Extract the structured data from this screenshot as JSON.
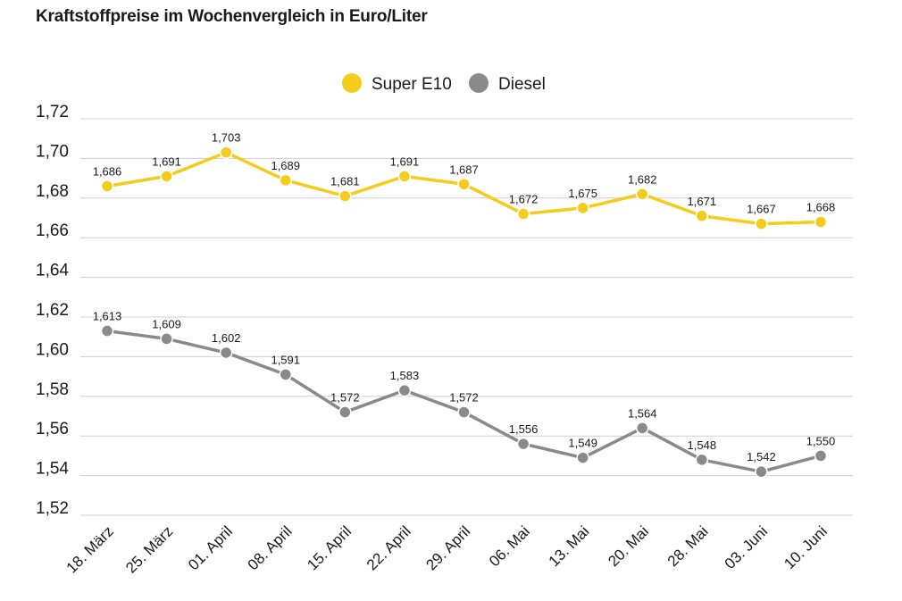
{
  "chart_data": {
    "type": "line",
    "title": "Kraftstoffpreise im Wochenvergleich in Euro/Liter",
    "categories": [
      "18. März",
      "25. März",
      "01. April",
      "08. April",
      "15. April",
      "22. April",
      "29. April",
      "06. Mai",
      "13. Mai",
      "20. Mai",
      "28. Mai",
      "03. Juni",
      "10. Juni"
    ],
    "series": [
      {
        "name": "Super E10",
        "color": "#f5cb1c",
        "values": [
          1.686,
          1.691,
          1.703,
          1.689,
          1.681,
          1.691,
          1.687,
          1.672,
          1.675,
          1.682,
          1.671,
          1.667,
          1.668
        ],
        "labels": [
          "1,686",
          "1,691",
          "1,703",
          "1,689",
          "1,681",
          "1,691",
          "1,687",
          "1,672",
          "1,675",
          "1,682",
          "1,671",
          "1,667",
          "1,668"
        ]
      },
      {
        "name": "Diesel",
        "color": "#8a8a8a",
        "values": [
          1.613,
          1.609,
          1.602,
          1.591,
          1.572,
          1.583,
          1.572,
          1.556,
          1.549,
          1.564,
          1.548,
          1.542,
          1.55
        ],
        "labels": [
          "1,613",
          "1,609",
          "1,602",
          "1,591",
          "1,572",
          "1,583",
          "1,572",
          "1,556",
          "1,549",
          "1,564",
          "1,548",
          "1,542",
          "1,550"
        ]
      }
    ],
    "ylim": [
      1.52,
      1.72
    ],
    "yticks": [
      "1,72",
      "1,70",
      "1,68",
      "1,66",
      "1,64",
      "1,62",
      "1,60",
      "1,58",
      "1,56",
      "1,54",
      "1,52"
    ],
    "ytick_values": [
      1.72,
      1.7,
      1.68,
      1.66,
      1.64,
      1.62,
      1.6,
      1.58,
      1.56,
      1.54,
      1.52
    ],
    "grid": true,
    "legend_position": "top-center",
    "xlabel": "",
    "ylabel": ""
  }
}
